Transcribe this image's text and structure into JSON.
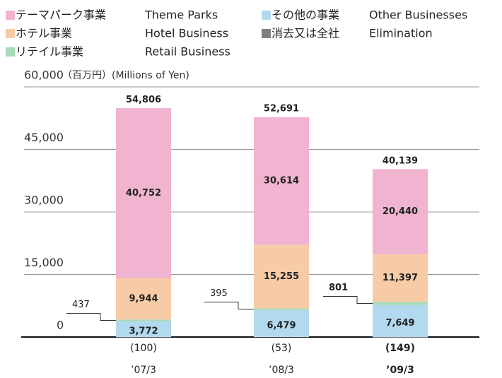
{
  "chart_data": {
    "type": "stacked_bar",
    "ylabel": "（百万円）(Millions of Yen)",
    "categories": [
      "’07/3",
      "’08/3",
      "’09/3"
    ],
    "series": [
      {
        "name": "テーマパーク事業",
        "name_en": "Theme Parks",
        "color": "#f0b3d0",
        "values": [
          40752,
          30614,
          20440
        ],
        "value_labels": [
          "40,752",
          "30,614",
          "20,440"
        ]
      },
      {
        "name": "ホテル事業",
        "name_en": "Hotel Business",
        "color": "#f6cba6",
        "values": [
          9944,
          15255,
          11397
        ],
        "value_labels": [
          "9,944",
          "15,255",
          "11,397"
        ]
      },
      {
        "name": "リテイル事業",
        "name_en": "Retail Business",
        "color": "#a8dbb8",
        "values": [
          437,
          395,
          801
        ]
      },
      {
        "name": "その他の事業",
        "name_en": "Other Businesses",
        "color": "#b3d9ef",
        "values": [
          3772,
          6479,
          7649
        ],
        "value_labels": [
          "3,772",
          "6,479",
          "7,649"
        ]
      },
      {
        "name": "消去又は全社",
        "name_en": "Elimination",
        "color": "#808080",
        "values": [
          -100,
          -53,
          -149
        ],
        "value_labels": [
          "(100)",
          "(53)",
          "(149)"
        ]
      }
    ],
    "totals": [
      54806,
      52691,
      40139
    ],
    "totals_labels": [
      "54,806",
      "52,691",
      "40,139"
    ],
    "ylim": [
      0,
      60000
    ],
    "yticks": [
      0,
      {
        "value": 15000,
        "label": "15,000"
      },
      {
        "value": 30000,
        "label": "30,000"
      },
      {
        "value": 45000,
        "label": "45,000"
      },
      {
        "value": 60000,
        "label": "60,000"
      }
    ],
    "grid": true
  }
}
